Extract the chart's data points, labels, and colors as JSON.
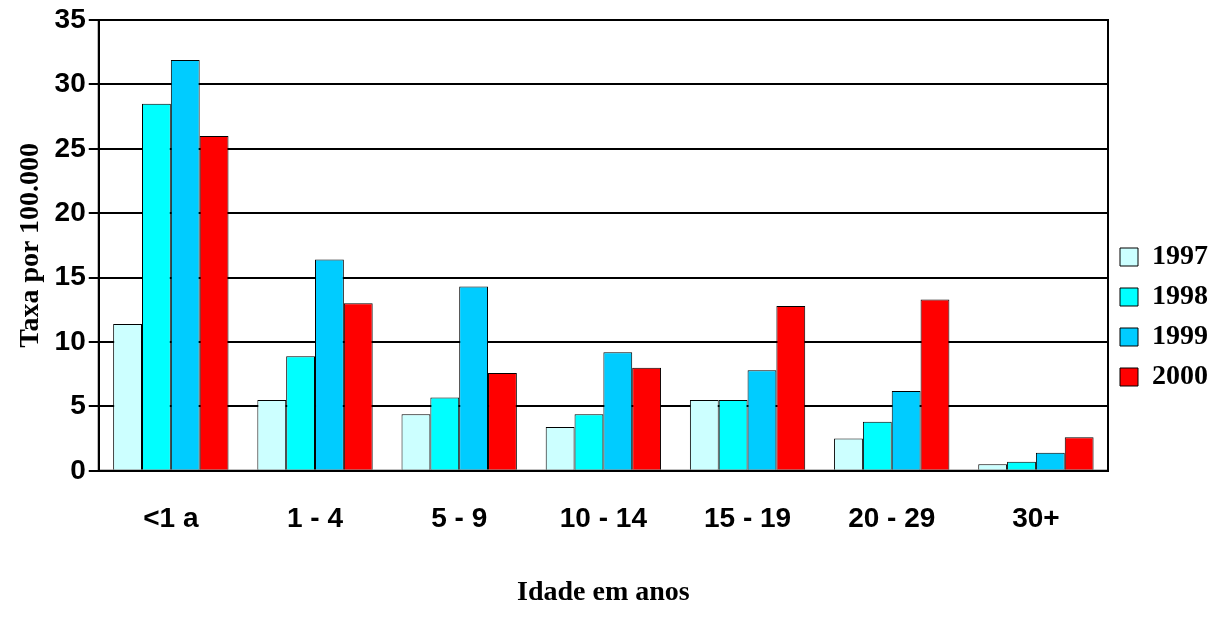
{
  "chart_data": {
    "type": "bar",
    "xlabel": "Idade em anos",
    "ylabel": "Taxa por 100.000",
    "categories": [
      "<1 a",
      "1 - 4",
      "5 - 9",
      "10 - 14",
      "15 - 19",
      "20 - 29",
      "30+"
    ],
    "series": [
      {
        "name": "1997",
        "color": "#ccffff",
        "values": [
          11.4,
          5.5,
          4.4,
          3.4,
          5.5,
          2.5,
          0.5
        ]
      },
      {
        "name": "1998",
        "color": "#00ffff",
        "values": [
          28.5,
          8.9,
          5.7,
          4.4,
          5.5,
          3.8,
          0.7
        ]
      },
      {
        "name": "1999",
        "color": "#00ccff",
        "values": [
          31.9,
          16.4,
          14.3,
          9.2,
          7.8,
          6.2,
          1.4
        ]
      },
      {
        "name": "2000",
        "color": "#ff0000",
        "values": [
          26.0,
          13.0,
          7.6,
          8.0,
          12.8,
          13.3,
          2.6
        ]
      }
    ],
    "ylim": [
      0,
      35
    ],
    "yticks": [
      0,
      5,
      10,
      15,
      20,
      25,
      30,
      35
    ],
    "grid": "y",
    "legend": "right"
  }
}
